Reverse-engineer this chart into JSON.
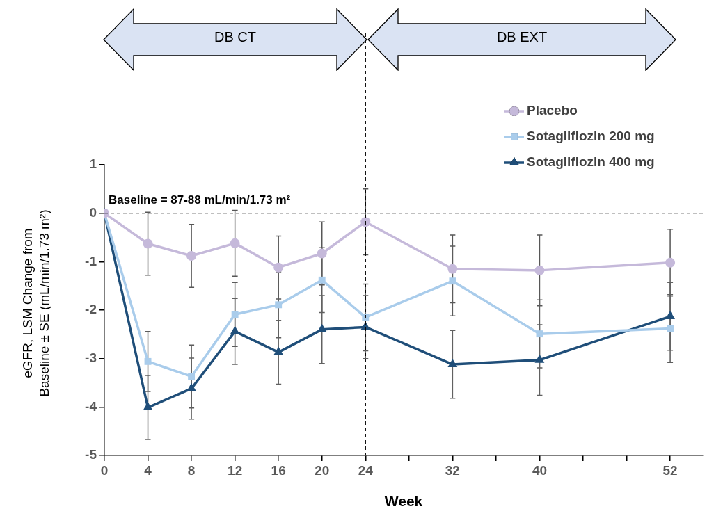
{
  "chart_data": {
    "type": "line",
    "xlabel": "Week",
    "ylabel": "eGFR, LSM Change from Baseline ± SE (mL/min/1.73 m²)",
    "x": [
      0,
      4,
      8,
      12,
      16,
      20,
      24,
      32,
      40,
      52
    ],
    "xlim": [
      0,
      55
    ],
    "xticks": [
      0,
      4,
      8,
      12,
      16,
      20,
      24,
      {
        "value": 28,
        "label": null
      },
      32,
      {
        "value": 36,
        "label": null
      },
      40,
      {
        "value": 44,
        "label": null
      },
      {
        "value": 48,
        "label": null
      },
      52
    ],
    "ylim": [
      -5,
      1
    ],
    "yticks": [
      -5,
      -4,
      -3,
      -2,
      -1,
      0,
      1
    ],
    "series": [
      {
        "name": "Placebo",
        "color": "#c5b9da",
        "marker": "circle",
        "values": [
          0,
          -0.63,
          -0.88,
          -0.62,
          -1.12,
          -0.83,
          -0.18,
          -1.15,
          -1.18,
          -1.02
        ],
        "errors": [
          null,
          0.65,
          0.65,
          0.68,
          0.65,
          0.65,
          0.68,
          0.7,
          0.73,
          0.69
        ]
      },
      {
        "name": "Sotagliflozin 200 mg",
        "color": "#a9cceb",
        "marker": "square",
        "values": [
          0,
          -3.06,
          -3.37,
          -2.09,
          -1.89,
          -1.38,
          -2.15,
          -1.4,
          -2.49,
          -2.38
        ],
        "errors": [
          null,
          0.62,
          0.65,
          0.66,
          0.68,
          0.67,
          0.69,
          0.72,
          0.7,
          0.7
        ]
      },
      {
        "name": "Sotagliflozin 400 mg",
        "color": "#1f4e79",
        "marker": "triangle",
        "values": [
          0,
          -4.01,
          -3.62,
          -2.44,
          -2.87,
          -2.4,
          -2.35,
          -3.12,
          -3.03,
          -2.13
        ],
        "errors": [
          null,
          0.66,
          0.63,
          0.68,
          0.66,
          0.7,
          0.65,
          0.7,
          0.73,
          0.7
        ]
      }
    ],
    "ref_lines": [
      {
        "axis": "y",
        "value": 0,
        "color": "#000000",
        "line_style": "dashed"
      },
      {
        "axis": "x",
        "value": 24,
        "color": "#000000",
        "line_style": "dashed"
      }
    ],
    "annotations": [
      {
        "text": "Baseline = 87-88 mL/min/1.73 m²",
        "x": 0,
        "y": 0
      },
      "DB CT",
      "DB EXT"
    ],
    "legend": "top right",
    "grid": false,
    "line_style": "solid"
  }
}
